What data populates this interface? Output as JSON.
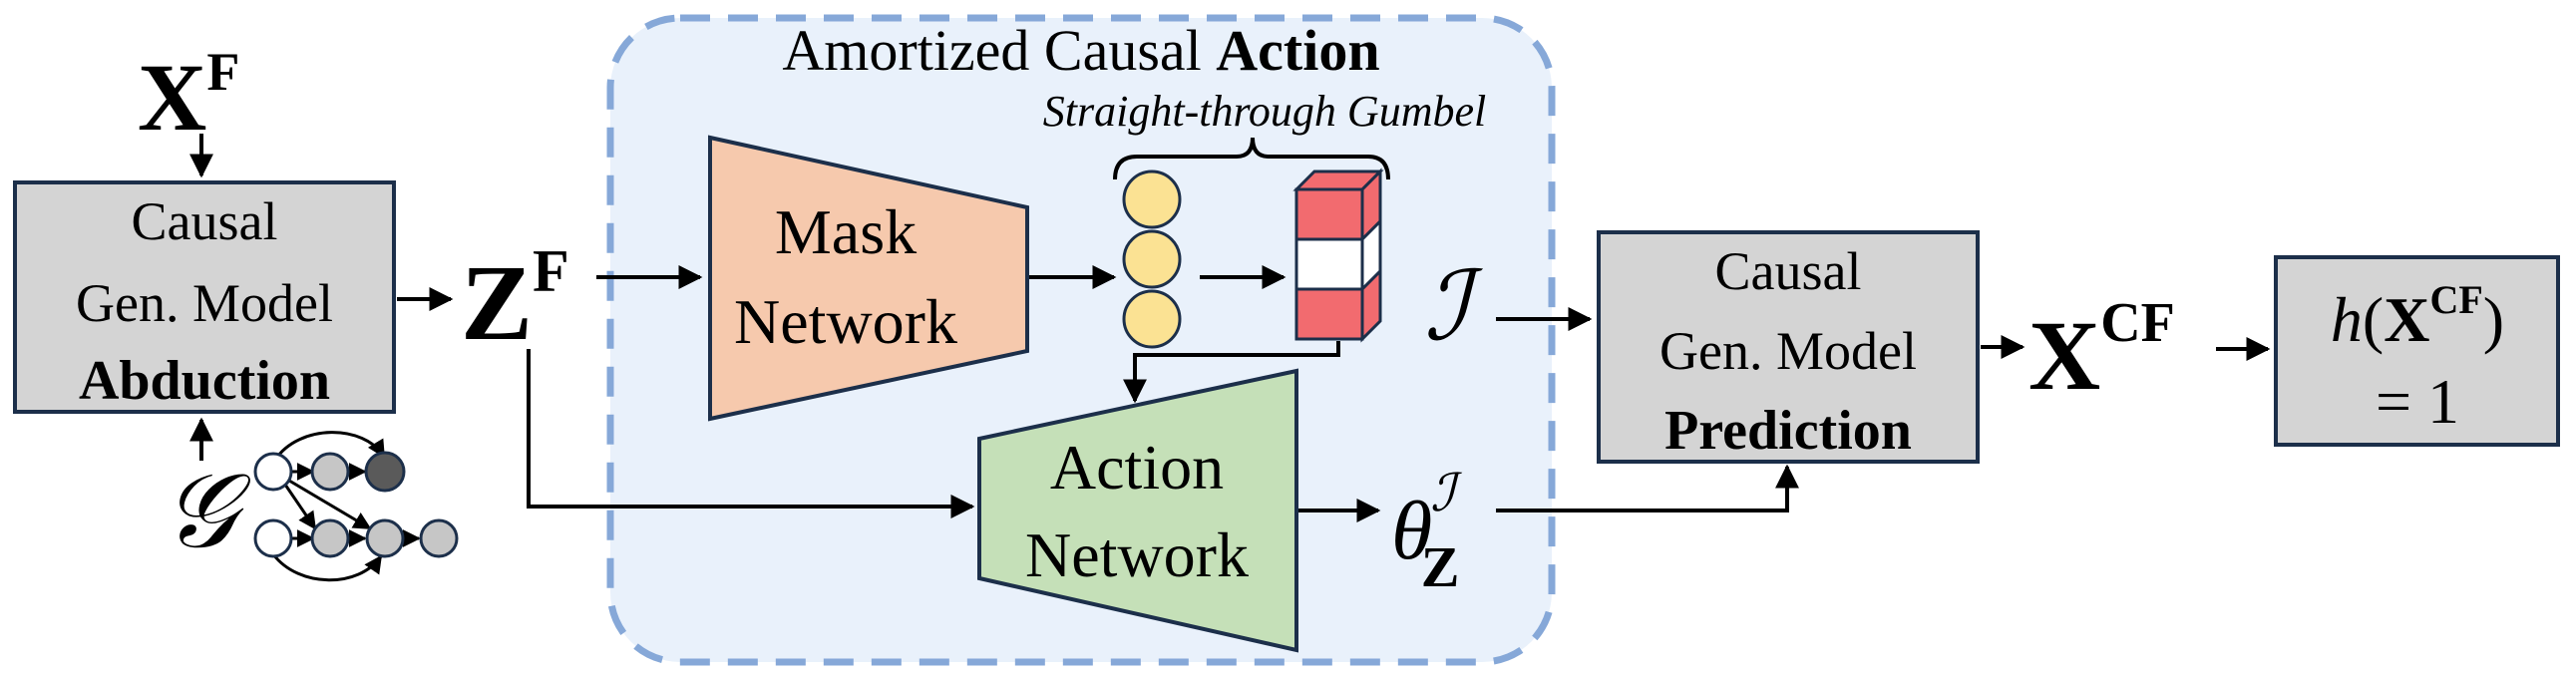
{
  "input_factual": {
    "symbol": "X",
    "superscript": "F"
  },
  "abduction_box": {
    "line1": "Causal",
    "line2": "Gen. Model",
    "line3": "Abduction"
  },
  "latent_factual": {
    "symbol": "Z",
    "superscript": "F"
  },
  "graph_symbol": "𝒢",
  "action_panel": {
    "title_regular": "Amortized Causal ",
    "title_bold": "Action",
    "gumbel_label": "Straight-through Gumbel"
  },
  "mask_network": {
    "line1": "Mask",
    "line2": "Network"
  },
  "action_network": {
    "line1": "Action",
    "line2": "Network"
  },
  "intervention_symbol": "ℐ",
  "theta": {
    "symbol": "θ",
    "superscript": "ℐ",
    "subscript": "Z"
  },
  "prediction_box": {
    "line1": "Causal",
    "line2": "Gen. Model",
    "line3": "Prediction"
  },
  "output_cf": {
    "symbol": "X",
    "superscript": "CF"
  },
  "goal_box": {
    "func": "h",
    "open_paren": "(",
    "symbol": "X",
    "superscript": "CF",
    "close_paren": ")",
    "line2": "= 1"
  },
  "colors": {
    "panel_fill": "#e9f1fb",
    "panel_border": "#86a8d8",
    "mask_fill": "#f6c9ad",
    "action_fill": "#c5e0b8",
    "gray_box": "#d4d4d4",
    "box_stroke": "#1c2f4a",
    "node_fill": "#fbe293",
    "bar_red": "#f26b6f",
    "graph_gray": "#c6c6c6",
    "graph_dark": "#5a5a5a"
  }
}
